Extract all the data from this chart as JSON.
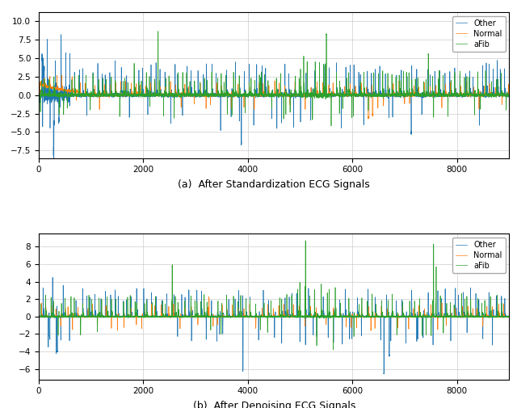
{
  "title_a": "(a)  After Standardization ECG Signals",
  "title_b": "(b)  After Denoising ECG Signals",
  "legend_labels": [
    "Other",
    "Normal",
    "aFib"
  ],
  "colors": [
    "#1f77b4",
    "#ff7f0e",
    "#2ca02c"
  ],
  "n_points": 9000,
  "xlim": [
    0,
    9000
  ],
  "ylim_a": [
    -8.5,
    11.2
  ],
  "ylim_b": [
    -7.2,
    9.5
  ],
  "yticks_a": [
    -7.5,
    -5.0,
    -2.5,
    0.0,
    2.5,
    5.0,
    7.5,
    10.0
  ],
  "yticks_b": [
    -6,
    -4,
    -2,
    0,
    2,
    4,
    6,
    8
  ],
  "xticks": [
    0,
    2000,
    4000,
    6000,
    8000
  ],
  "linewidth": 0.5,
  "figsize": [
    6.4,
    5.05
  ],
  "dpi": 100,
  "background_color": "#ffffff",
  "grid_color": "#cccccc",
  "seed": 42
}
